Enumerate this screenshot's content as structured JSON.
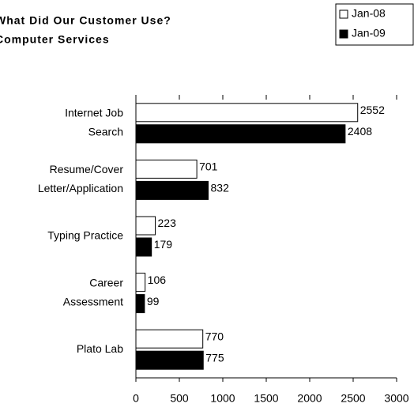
{
  "chart_data": {
    "type": "bar",
    "orientation": "horizontal",
    "title": "What Did Our Customer Use?",
    "subtitle": "Computer Services",
    "categories": [
      [
        "Internet Job",
        "Search"
      ],
      [
        "Resume/Cover",
        "Letter/Application"
      ],
      [
        "Typing Practice"
      ],
      [
        "Career",
        "Assessment"
      ],
      [
        "Plato Lab"
      ]
    ],
    "series": [
      {
        "name": "Jan-08",
        "color": "#ffffff",
        "values": [
          2552,
          701,
          223,
          106,
          770
        ]
      },
      {
        "name": "Jan-09",
        "color": "#000000",
        "values": [
          2408,
          832,
          179,
          99,
          775
        ]
      }
    ],
    "xlim": [
      0,
      3000
    ],
    "xticks": [
      0,
      500,
      1000,
      1500,
      2000,
      2500,
      3000
    ],
    "grid": false,
    "legend": "top-right"
  }
}
